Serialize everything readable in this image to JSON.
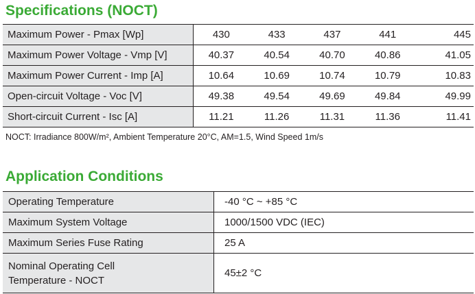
{
  "specifications": {
    "title": "Specifications (NOCT)",
    "rows": [
      {
        "label": "Maximum Power - Pmax [Wp]",
        "values": [
          "430",
          "433",
          "437",
          "441",
          "445"
        ]
      },
      {
        "label": "Maximum Power Voltage - Vmp [V]",
        "values": [
          "40.37",
          "40.54",
          "40.70",
          "40.86",
          "41.05"
        ]
      },
      {
        "label": "Maximum Power Current - Imp [A]",
        "values": [
          "10.64",
          "10.69",
          "10.74",
          "10.79",
          "10.83"
        ]
      },
      {
        "label": "Open-circuit Voltage - Voc [V]",
        "values": [
          "49.38",
          "49.54",
          "49.69",
          "49.84",
          "49.99"
        ]
      },
      {
        "label": "Short-circuit Current - Isc [A]",
        "values": [
          "11.21",
          "11.26",
          "11.31",
          "11.36",
          "11.41"
        ]
      }
    ],
    "note": "NOCT: Irradiance 800W/m², Ambient Temperature 20°C, AM=1.5, Wind Speed 1m/s"
  },
  "application": {
    "title": "Application Conditions",
    "rows": [
      {
        "label": "Operating Temperature",
        "value": "-40 °C ~ +85 °C"
      },
      {
        "label": "Maximum System Voltage",
        "value": "1000/1500 VDC (IEC)"
      },
      {
        "label": "Maximum Series Fuse Rating",
        "value": "25 A"
      },
      {
        "label": "Nominal Operating Cell Temperature - NOCT",
        "value": "45±2 °C"
      }
    ]
  },
  "colors": {
    "title_green": "#3aaa35",
    "label_bg": "#e6e7e8",
    "text": "#231f20"
  }
}
